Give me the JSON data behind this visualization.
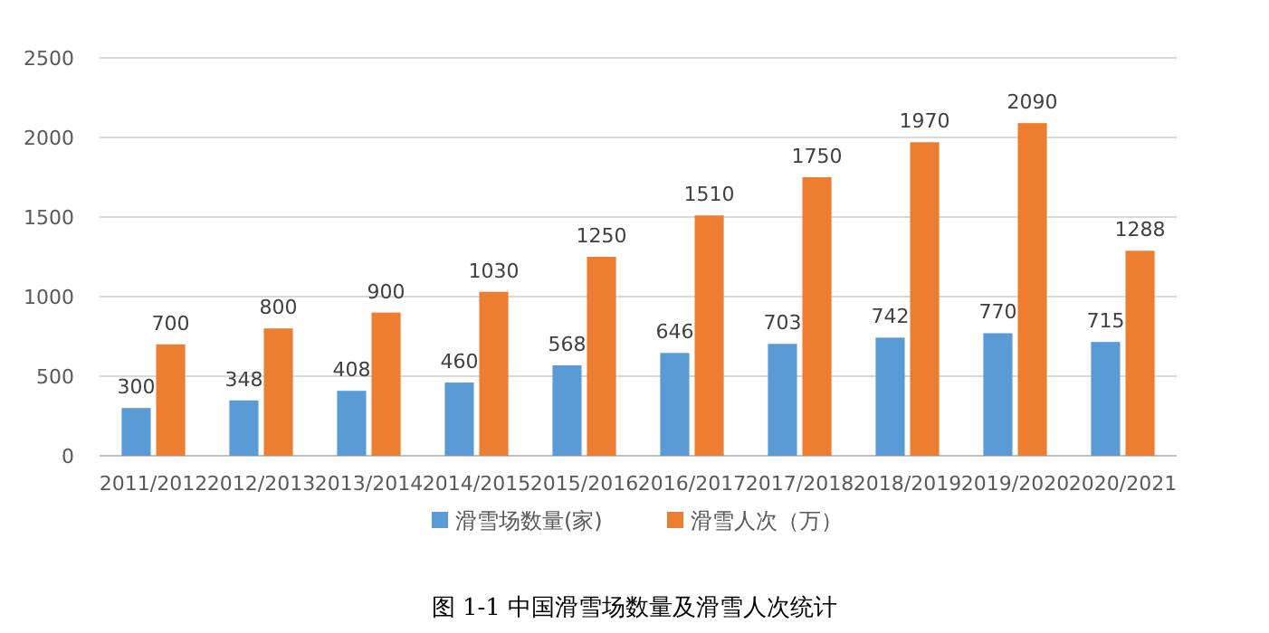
{
  "chart_data": {
    "type": "bar",
    "categories": [
      "2011/2012",
      "2012/2013",
      "2013/2014",
      "2014/2015",
      "2015/2016",
      "2016/2017",
      "2017/2018",
      "2018/2019",
      "2019/2020",
      "2020/2021"
    ],
    "series": [
      {
        "name": "滑雪场数量(家)",
        "color": "#5b9bd5",
        "values": [
          300,
          348,
          408,
          460,
          568,
          646,
          703,
          742,
          770,
          715
        ]
      },
      {
        "name": "滑雪人次（万）",
        "color": "#ed7d31",
        "values": [
          700,
          800,
          900,
          1030,
          1250,
          1510,
          1750,
          1970,
          2090,
          1288
        ]
      }
    ],
    "ylim": [
      0,
      2500
    ],
    "yticks": [
      0,
      500,
      1000,
      1500,
      2000,
      2500
    ],
    "grid": "y",
    "legend": "bottom",
    "data_labels": true,
    "annotations": [
      "图 1-1  中国滑雪场数量及滑雪人次统计"
    ]
  }
}
